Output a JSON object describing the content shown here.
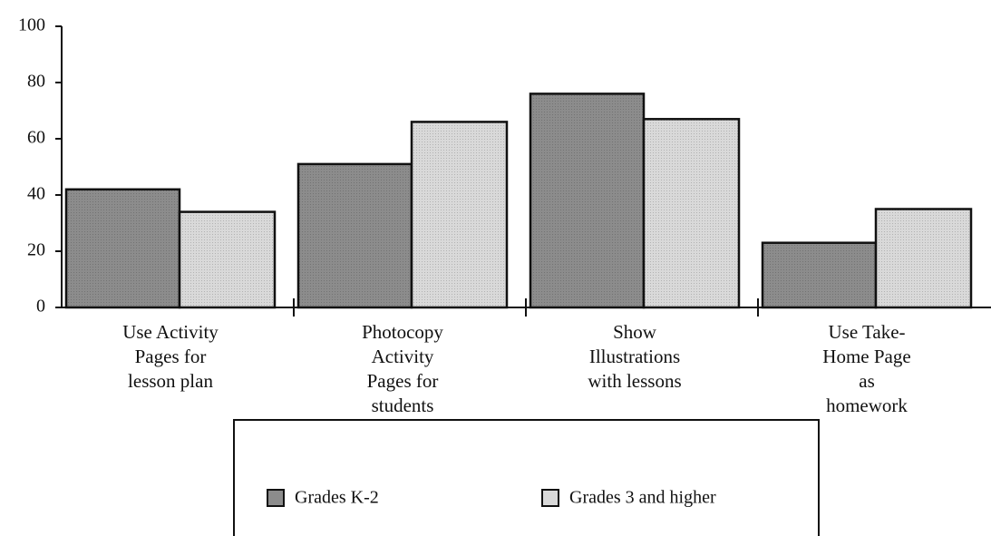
{
  "chart_data": {
    "type": "bar",
    "categories": [
      "Use Activity\nPages for\nlesson plan",
      "Photocopy\nActivity\nPages for\nstudents",
      "Show\nIllustrations\nwith lessons",
      "Use Take-\nHome Page\nas\nhomework"
    ],
    "series": [
      {
        "name": "Grades K-2",
        "color": "#8c8c8c",
        "values": [
          42,
          51,
          76,
          23
        ]
      },
      {
        "name": "Grades 3 and higher",
        "color": "#d9d9d9",
        "values": [
          34,
          66,
          67,
          35
        ]
      }
    ],
    "ylim": [
      0,
      100
    ],
    "yticks": [
      0,
      20,
      40,
      60,
      80,
      100
    ]
  }
}
